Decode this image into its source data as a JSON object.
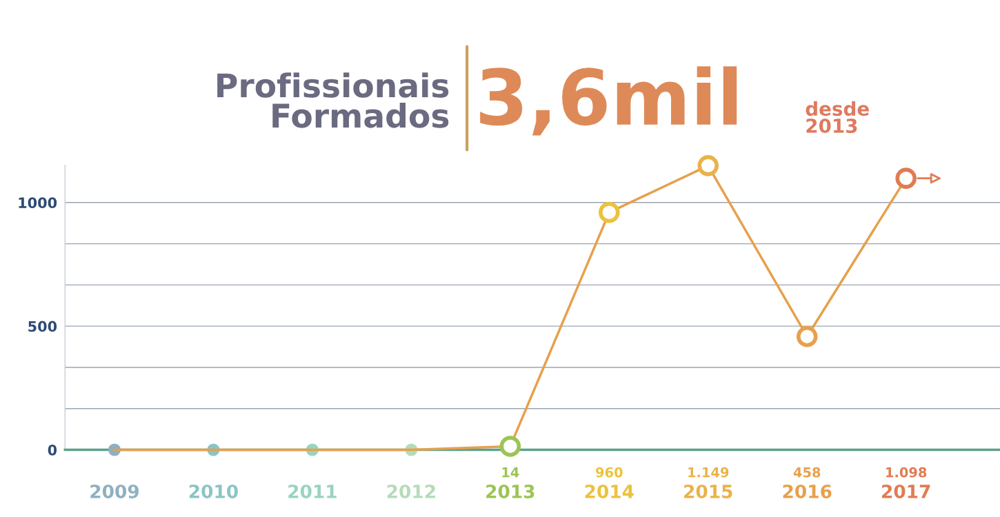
{
  "chart_data": {
    "type": "line",
    "title": "Profissionais Formados",
    "subtitle": "3,6mil",
    "annotations": [
      "desde 2013"
    ],
    "categories": [
      "2009",
      "2010",
      "2011",
      "2012",
      "2013",
      "2014",
      "2015",
      "2016",
      "2017"
    ],
    "series": [
      {
        "color": "#e6a04c",
        "values": [
          0,
          0,
          0,
          0,
          14,
          960,
          1149,
          458,
          1098
        ],
        "colors": [
          "#8fb0c0",
          "#8cc4c4",
          "#98d4c0",
          "#b4dcb8",
          "#9cc454",
          "#ecc23c",
          "#eab24a",
          "#e8a04c",
          "#e07c52"
        ],
        "value_labels": [
          null,
          null,
          null,
          null,
          "14",
          "960",
          "1.149",
          "458",
          "1.098"
        ]
      }
    ],
    "ylim": [
      0,
      1150
    ],
    "yticks": [
      0,
      {
        "value": 166.7,
        "label": null
      },
      {
        "value": 333.3,
        "label": null
      },
      500,
      {
        "value": 666.7,
        "label": null
      },
      {
        "value": 833.3,
        "label": null
      },
      1000
    ],
    "grid": "y",
    "marker": "circle",
    "line_style": "solid",
    "legend": false
  }
}
